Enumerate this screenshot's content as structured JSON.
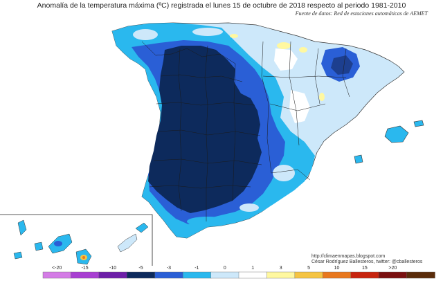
{
  "title": "Anomalía de la temperatura máxima (ºC) registrada el lunes 15 de octubre de 2018 respecto al periodo 1981-2010",
  "source": "Fuente de datos: Red de estaciones automáticas de AEMET",
  "credits": {
    "url": "http://climaenmapas.blogspot.com",
    "author": "César Rodríguez Ballesteros, twitter: @cballesteros"
  },
  "legend": {
    "labels": [
      "<-20",
      "-15",
      "-10",
      "-5",
      "-3",
      "-1",
      "0",
      "1",
      "3",
      "5",
      "10",
      "15",
      ">20"
    ],
    "colors": [
      "#d47ce6",
      "#a83fd2",
      "#6d1fa8",
      "#0d2a5c",
      "#2a5fd6",
      "#2ab8ee",
      "#cde8fa",
      "#ffffff",
      "#fff8a0",
      "#f5c443",
      "#e8781e",
      "#c7240f",
      "#7a1010",
      "#5a2c0a"
    ]
  },
  "map_colors": {
    "sea": "#ffffff",
    "dark": "#0d2a5c",
    "mid": "#2a5fd6",
    "light": "#2ab8ee",
    "pale": "#cde8fa",
    "near_zero": "#ffffff",
    "warm": "#fff8a0",
    "hot": "#f5c443"
  }
}
